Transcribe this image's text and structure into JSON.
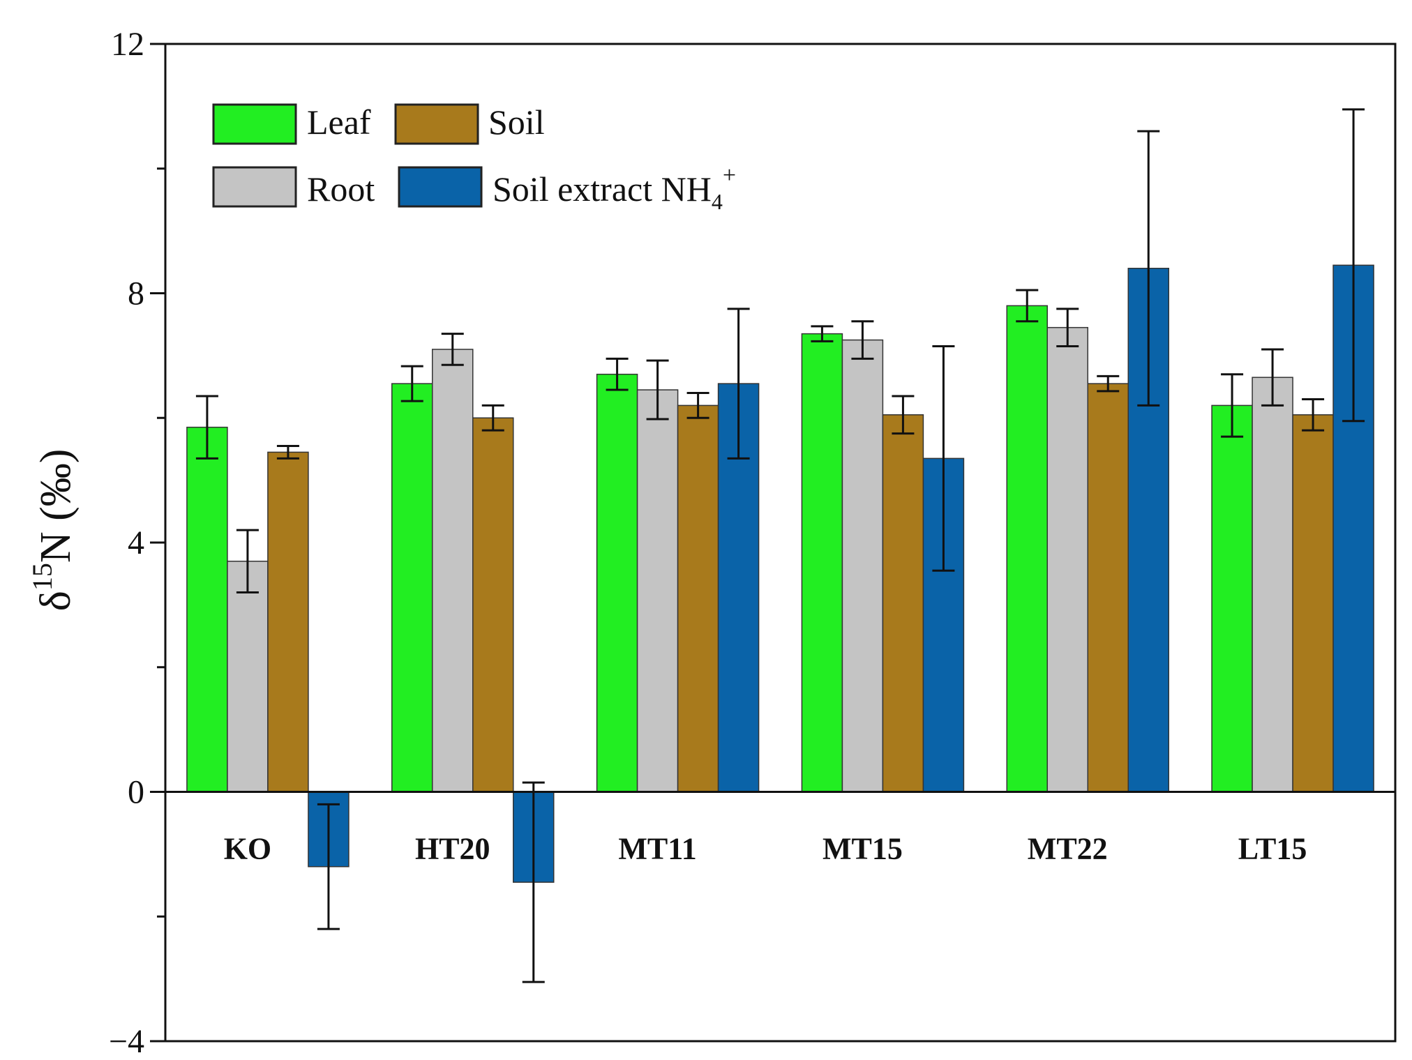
{
  "chart_data": {
    "type": "bar",
    "title": "",
    "xlabel": "",
    "ylabel": {
      "delta": "δ",
      "superscript": "15",
      "main": "N (‰)"
    },
    "ylim": [
      -4,
      12
    ],
    "yticks": [
      -4,
      0,
      4,
      8,
      12
    ],
    "ytick_labels": [
      "−4",
      "0",
      "4",
      "8",
      "12"
    ],
    "categories": [
      "KO",
      "HT20",
      "MT11",
      "MT15",
      "MT22",
      "LT15"
    ],
    "series": [
      {
        "name": "Leaf",
        "color": "#22ee22",
        "values": [
          5.85,
          6.55,
          6.7,
          7.35,
          7.8,
          6.2
        ],
        "errors": [
          0.5,
          0.28,
          0.25,
          0.12,
          0.25,
          0.5
        ]
      },
      {
        "name": "Root",
        "color": "#c4c4c4",
        "values": [
          3.7,
          7.1,
          6.45,
          7.25,
          7.45,
          6.65
        ],
        "errors": [
          0.5,
          0.25,
          0.47,
          0.3,
          0.3,
          0.45
        ]
      },
      {
        "name": "Soil",
        "color": "#a87a1c",
        "values": [
          5.45,
          6.0,
          6.2,
          6.05,
          6.55,
          6.05
        ],
        "errors": [
          0.1,
          0.2,
          0.2,
          0.3,
          0.12,
          0.25
        ]
      },
      {
        "name": "Soil extract NH4+",
        "color": "#0a63a8",
        "values": [
          -1.2,
          -1.45,
          6.55,
          5.35,
          8.4,
          8.45
        ],
        "errors": [
          1.0,
          1.6,
          1.2,
          1.8,
          2.2,
          2.5
        ]
      }
    ],
    "legend": {
      "position": "top-left",
      "entries": [
        {
          "label": "Leaf",
          "color": "#22ee22"
        },
        {
          "label": "Soil",
          "color": "#a87a1c"
        },
        {
          "label": "Root",
          "color": "#c4c4c4"
        },
        {
          "label": "Soil extract NH",
          "sub": "4",
          "sup": "+",
          "color": "#0a63a8"
        }
      ]
    },
    "grid": false
  }
}
